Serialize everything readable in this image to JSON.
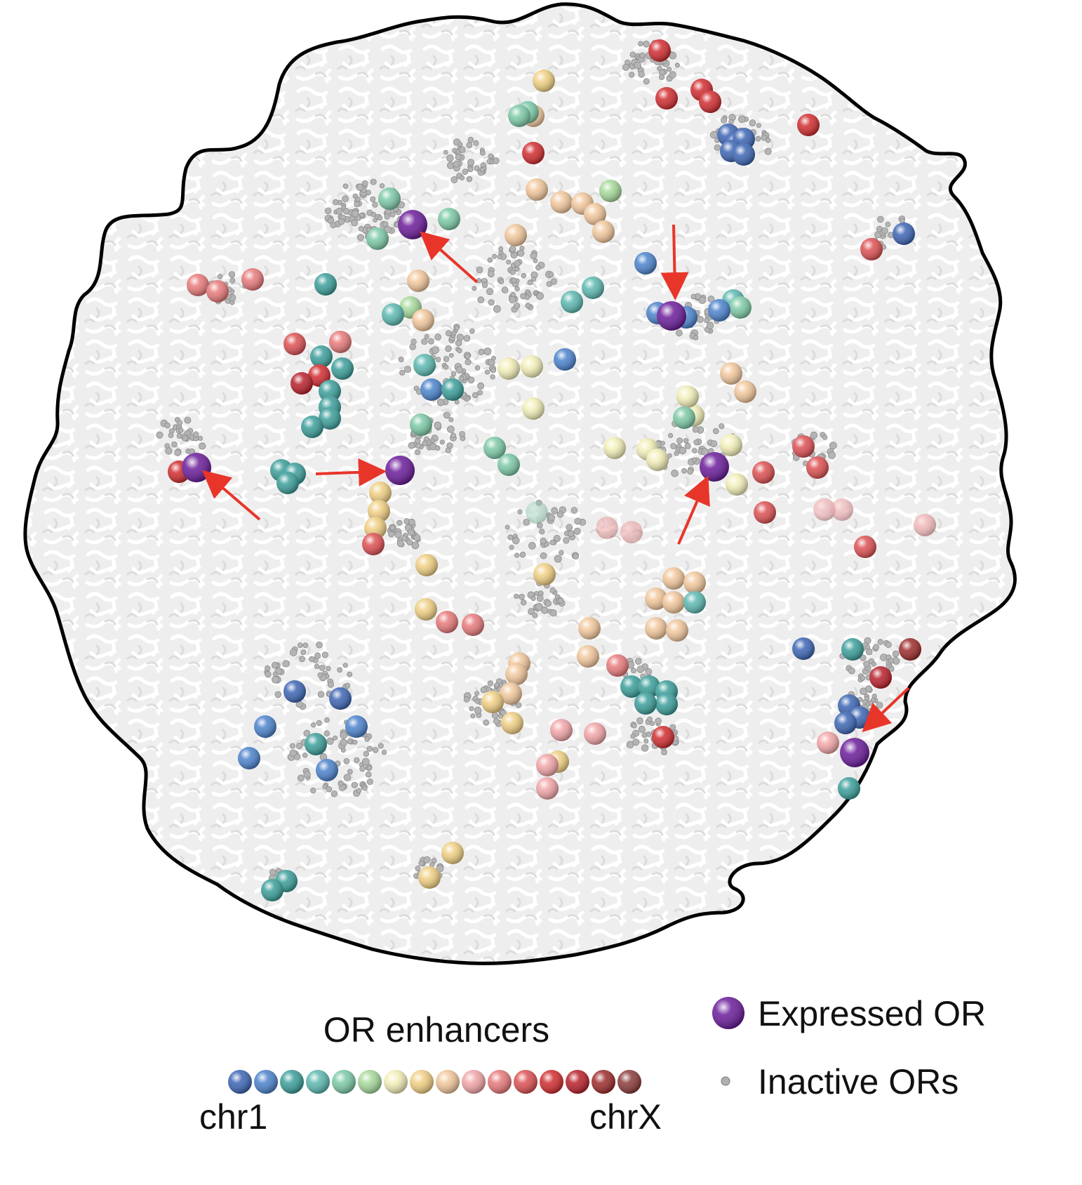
{
  "legend": {
    "enhancers_title": "OR enhancers",
    "scale_start": "chr1",
    "scale_end": "chrX",
    "expressed_label": "Expressed OR",
    "inactive_label": "Inactive ORs"
  },
  "enhancer_colors": [
    "#3b64b4",
    "#4a82cc",
    "#3a9e9a",
    "#5bb8b0",
    "#7cc9a6",
    "#a6d99a",
    "#f2efb8",
    "#f0cf82",
    "#f2c79c",
    "#f2a5a8",
    "#e8797a",
    "#dd4f52",
    "#d12b2e",
    "#b81f2a",
    "#9c2a2a",
    "#8a3a38"
  ],
  "colors": {
    "expressed": "#6a1b9a",
    "inactive": "#a8a8a8",
    "arrow": "#e8352a",
    "nucleus_fill": "#ececec",
    "nucleus_outline": "#000000"
  }
}
